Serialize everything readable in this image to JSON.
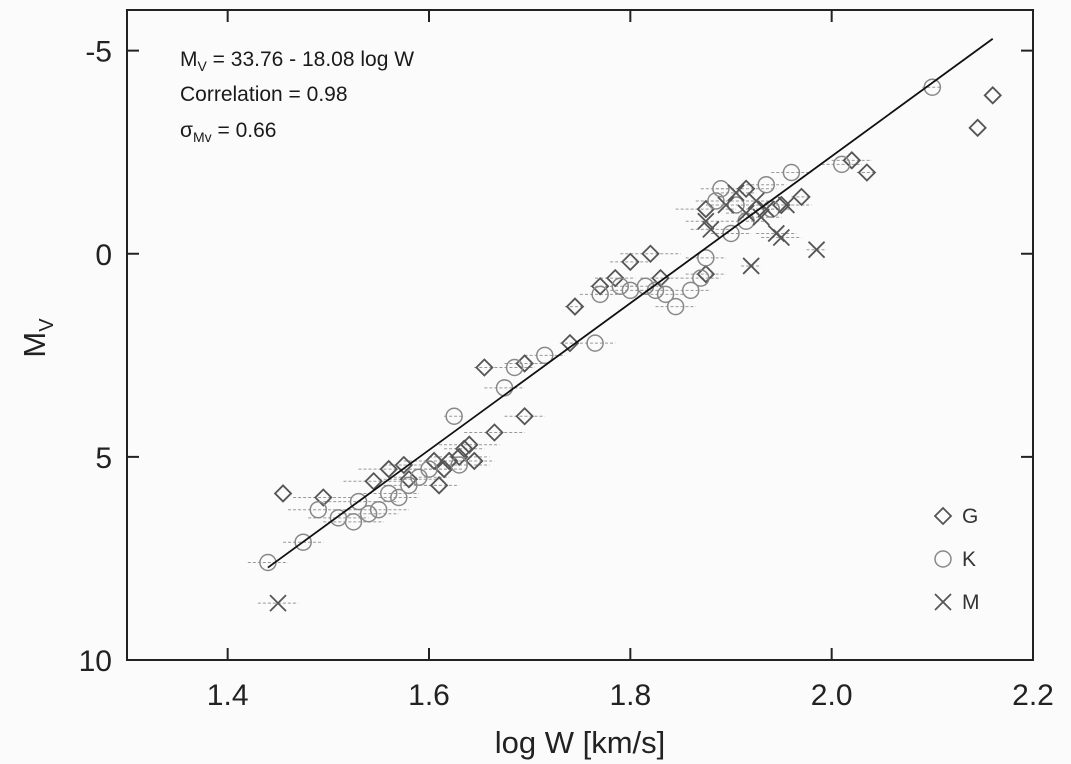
{
  "chart_data": {
    "type": "scatter",
    "xlabel": "log W [km/s]",
    "ylabel_main": "M",
    "ylabel_sub": "V",
    "xlim": [
      1.3,
      2.2
    ],
    "ylim": [
      10,
      -6
    ],
    "y_inverted": true,
    "grid": false,
    "legend_position": "bottom-right",
    "xticks": [
      "1.4",
      "1.6",
      "1.8",
      "2.0",
      "2.2"
    ],
    "xtick_values": [
      1.4,
      1.6,
      1.8,
      2.0,
      2.2
    ],
    "yticks": [
      "-5",
      "0",
      "5",
      "10"
    ],
    "ytick_values": [
      -5,
      0,
      5,
      10
    ],
    "annotations": {
      "line1_main": "M",
      "line1_sub": "V",
      "line1_rest": " = 33.76 - 18.08 log W",
      "line2": "Correlation = 0.98",
      "line3_main": "σ",
      "line3_sub": "Mv",
      "line3_rest": " = 0.66"
    },
    "fit_line": {
      "intercept": 33.76,
      "slope": -18.08,
      "x_range": [
        1.44,
        2.16
      ]
    },
    "series": [
      {
        "name": "G",
        "marker": "diamond",
        "color": "#555555",
        "points": [
          [
            1.455,
            5.9,
            0
          ],
          [
            1.495,
            6.0,
            0.03
          ],
          [
            1.545,
            5.6,
            0.03
          ],
          [
            1.56,
            5.3,
            0.03
          ],
          [
            1.575,
            5.2,
            0.02
          ],
          [
            1.58,
            5.55,
            0.03
          ],
          [
            1.605,
            5.1,
            0.03
          ],
          [
            1.61,
            5.7,
            0.02
          ],
          [
            1.615,
            5.3,
            0.02
          ],
          [
            1.62,
            5.1,
            0.02
          ],
          [
            1.63,
            5.0,
            0.03
          ],
          [
            1.635,
            4.8,
            0.02
          ],
          [
            1.64,
            4.7,
            0.03
          ],
          [
            1.645,
            5.1,
            0.02
          ],
          [
            1.655,
            2.8,
            0.01
          ],
          [
            1.665,
            4.4,
            0.03
          ],
          [
            1.695,
            2.7,
            0.02
          ],
          [
            1.695,
            4.0,
            0.02
          ],
          [
            1.74,
            2.2,
            0.01
          ],
          [
            1.745,
            1.3,
            0.01
          ],
          [
            1.77,
            0.8,
            0.01
          ],
          [
            1.785,
            0.6,
            0.02
          ],
          [
            1.8,
            0.2,
            0.02
          ],
          [
            1.82,
            0.0,
            0.03
          ],
          [
            1.83,
            0.6,
            0.02
          ],
          [
            1.875,
            0.5,
            0.02
          ],
          [
            1.875,
            -1.1,
            0.03
          ],
          [
            1.915,
            -1.6,
            0.03
          ],
          [
            1.95,
            -1.2,
            0.03
          ],
          [
            1.97,
            -1.4,
            0.01
          ],
          [
            2.02,
            -2.3,
            0.02
          ],
          [
            2.035,
            -2.0,
            0.01
          ],
          [
            2.145,
            -3.1,
            0
          ],
          [
            2.16,
            -3.9,
            0
          ]
        ]
      },
      {
        "name": "K",
        "marker": "circle",
        "color": "#888888",
        "points": [
          [
            1.44,
            7.6,
            0.02
          ],
          [
            1.475,
            7.1,
            0.02
          ],
          [
            1.49,
            6.3,
            0.03
          ],
          [
            1.51,
            6.5,
            0.03
          ],
          [
            1.525,
            6.6,
            0.03
          ],
          [
            1.53,
            6.1,
            0.04
          ],
          [
            1.54,
            6.4,
            0.03
          ],
          [
            1.55,
            6.3,
            0.03
          ],
          [
            1.56,
            5.9,
            0.03
          ],
          [
            1.57,
            6.0,
            0.02
          ],
          [
            1.58,
            5.7,
            0.03
          ],
          [
            1.59,
            5.5,
            0.03
          ],
          [
            1.6,
            5.3,
            0.02
          ],
          [
            1.625,
            4.0,
            0.01
          ],
          [
            1.63,
            5.2,
            0.03
          ],
          [
            1.675,
            3.3,
            0.02
          ],
          [
            1.685,
            2.8,
            0.02
          ],
          [
            1.715,
            2.5,
            0.02
          ],
          [
            1.765,
            2.2,
            0.02
          ],
          [
            1.77,
            1.0,
            0.02
          ],
          [
            1.79,
            0.8,
            0.02
          ],
          [
            1.8,
            0.9,
            0.02
          ],
          [
            1.815,
            0.8,
            0.02
          ],
          [
            1.825,
            0.9,
            0.02
          ],
          [
            1.835,
            1.0,
            0.02
          ],
          [
            1.845,
            1.3,
            0.02
          ],
          [
            1.86,
            0.9,
            0.02
          ],
          [
            1.87,
            0.6,
            0.02
          ],
          [
            1.875,
            0.1,
            0.02
          ],
          [
            1.885,
            -1.3,
            0.02
          ],
          [
            1.89,
            -1.6,
            0.02
          ],
          [
            1.9,
            -0.5,
            0.02
          ],
          [
            1.905,
            -1.2,
            0.02
          ],
          [
            1.915,
            -0.8,
            0.02
          ],
          [
            1.935,
            -1.7,
            0.02
          ],
          [
            1.94,
            -1.1,
            0.02
          ],
          [
            1.96,
            -2.0,
            0.02
          ],
          [
            2.01,
            -2.2,
            0.02
          ],
          [
            2.1,
            -4.1,
            0.01
          ]
        ]
      },
      {
        "name": "M",
        "marker": "cross",
        "color": "#555555",
        "points": [
          [
            1.45,
            8.6,
            0.02
          ],
          [
            1.875,
            -0.8,
            0.02
          ],
          [
            1.88,
            -0.6,
            0.02
          ],
          [
            1.895,
            -1.2,
            0.02
          ],
          [
            1.905,
            -1.5,
            0.02
          ],
          [
            1.915,
            -1.0,
            0.02
          ],
          [
            1.92,
            0.3,
            0.01
          ],
          [
            1.925,
            -1.3,
            0.02
          ],
          [
            1.93,
            -0.9,
            0.02
          ],
          [
            1.935,
            -1.1,
            0.02
          ],
          [
            1.945,
            -0.5,
            0.02
          ],
          [
            1.95,
            -0.4,
            0.02
          ],
          [
            1.955,
            -1.2,
            0.02
          ],
          [
            1.985,
            -0.1,
            0.01
          ]
        ]
      }
    ]
  }
}
